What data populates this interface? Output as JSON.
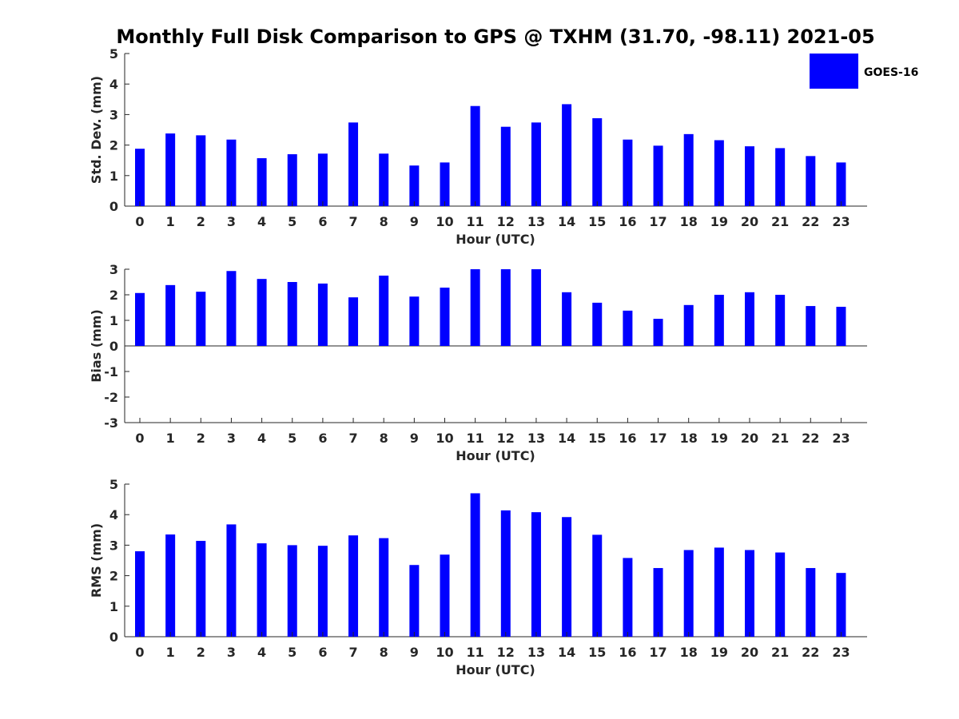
{
  "chart_data": {
    "title": "Monthly Full Disk Comparison to GPS @ TXHM (31.70, -98.11) 2021-05",
    "type": "bar",
    "legend": {
      "entries": [
        "GOES-16"
      ],
      "placement": "top-right",
      "color": "#0000ff"
    },
    "bar_color": "#0000ff",
    "categories": [
      "0",
      "1",
      "2",
      "3",
      "4",
      "5",
      "6",
      "7",
      "8",
      "9",
      "10",
      "11",
      "12",
      "13",
      "14",
      "15",
      "16",
      "17",
      "18",
      "19",
      "20",
      "21",
      "22",
      "23"
    ],
    "panels": [
      {
        "ylabel": "Std. Dev. (mm)",
        "xlabel": "Hour (UTC)",
        "ylim": [
          0,
          5
        ],
        "yticks": [
          "0",
          "1",
          "2",
          "3",
          "4",
          "5"
        ],
        "values": [
          1.88,
          2.38,
          2.32,
          2.18,
          1.57,
          1.7,
          1.72,
          2.74,
          1.72,
          1.33,
          1.43,
          3.28,
          2.6,
          2.74,
          3.34,
          2.88,
          2.18,
          1.98,
          2.36,
          2.16,
          1.96,
          1.9,
          1.64,
          1.43
        ]
      },
      {
        "ylabel": "Bias (mm)",
        "xlabel": "Hour (UTC)",
        "ylim": [
          -3,
          3
        ],
        "yticks": [
          "-3",
          "-2",
          "-1",
          "0",
          "1",
          "2",
          "3"
        ],
        "values": [
          2.07,
          2.38,
          2.12,
          2.93,
          2.62,
          2.5,
          2.44,
          1.9,
          2.75,
          1.93,
          2.28,
          3.0,
          3.0,
          3.0,
          2.1,
          1.69,
          1.38,
          1.06,
          1.6,
          2.0,
          2.1,
          2.0,
          1.56,
          1.53
        ]
      },
      {
        "ylabel": "RMS (mm)",
        "xlabel": "Hour (UTC)",
        "ylim": [
          0,
          5
        ],
        "yticks": [
          "0",
          "1",
          "2",
          "3",
          "4",
          "5"
        ],
        "values": [
          2.8,
          3.35,
          3.14,
          3.68,
          3.06,
          3.0,
          2.98,
          3.32,
          3.23,
          2.35,
          2.69,
          4.7,
          4.14,
          4.08,
          3.92,
          3.34,
          2.58,
          2.25,
          2.84,
          2.92,
          2.84,
          2.76,
          2.25,
          2.09
        ]
      }
    ]
  }
}
